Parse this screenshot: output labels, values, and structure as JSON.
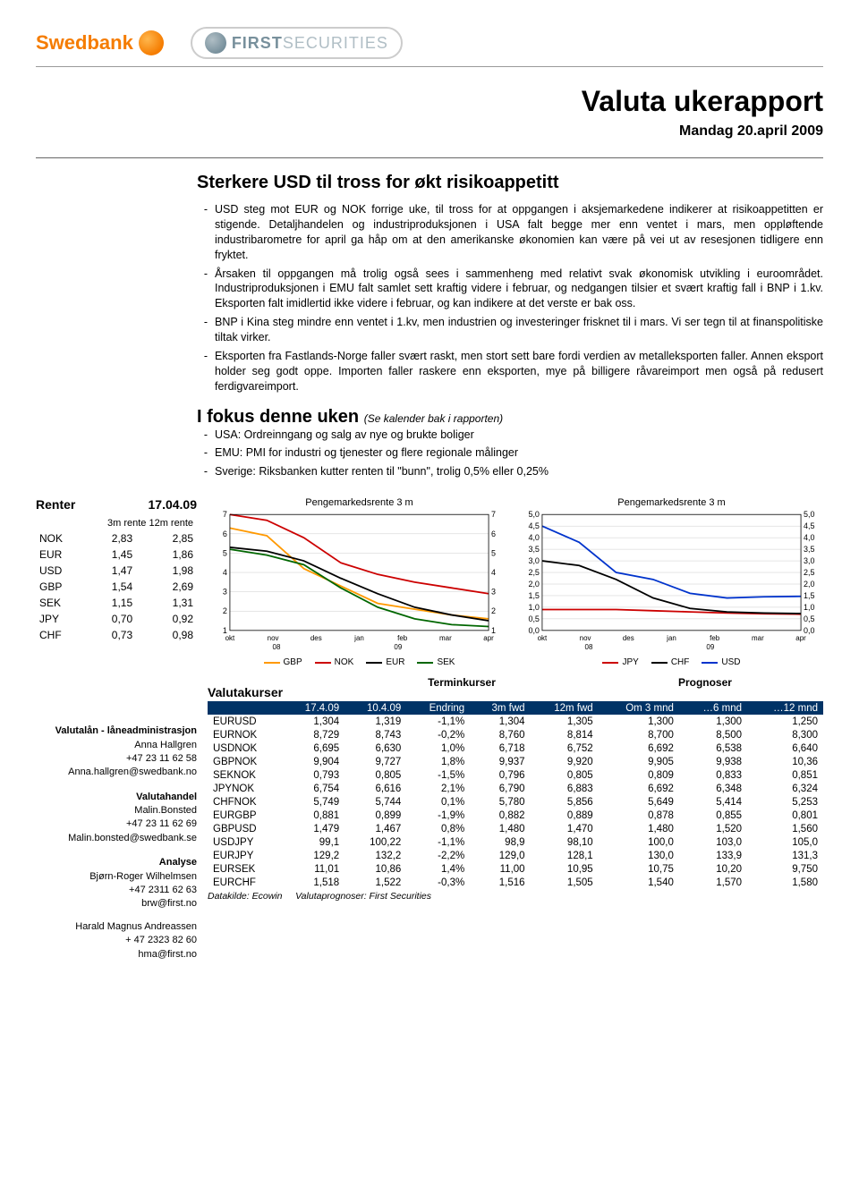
{
  "logos": {
    "swedbank": "Swedbank",
    "first": "FIRST",
    "first_light": "SECURITIES"
  },
  "title": {
    "main": "Valuta ukerapport",
    "date": "Mandag 20.april 2009"
  },
  "section1": {
    "title": "Sterkere USD til tross for økt risikoappetitt",
    "bullets": [
      "USD steg mot EUR og NOK forrige uke, til tross for at oppgangen i aksjemarkedene indikerer at risikoappetitten er stigende. Detaljhandelen og industriproduksjonen i USA falt begge mer enn ventet i mars, men oppløftende industribarometre for april ga håp om at den amerikanske økonomien kan være på vei ut av resesjonen tidligere enn fryktet.",
      "Årsaken til oppgangen må trolig også sees i sammenheng med relativt svak økonomisk utvikling i euroområdet. Industriproduksjonen i EMU falt samlet sett kraftig videre i februar, og nedgangen tilsier et svært kraftig fall i BNP i 1.kv. Eksporten falt imidlertid ikke videre i februar, og kan indikere at det verste er bak oss.",
      "BNP i Kina steg mindre enn ventet i 1.kv, men industrien og investeringer frisknet til i mars. Vi ser tegn til at finanspolitiske tiltak virker.",
      "Eksporten fra Fastlands-Norge faller svært raskt, men stort sett bare fordi verdien av metalleksporten faller. Annen eksport holder seg godt oppe. Importen faller raskere enn eksporten, mye på billigere råvareimport men også på redusert ferdigvareimport."
    ]
  },
  "section2": {
    "title": "I fokus denne uken",
    "sub": "(Se kalender bak i rapporten)",
    "bullets": [
      "USA: Ordreinngang og salg av nye og brukte boliger",
      "EMU: PMI for industri og tjenester og flere regionale målinger",
      "Sverige: Riksbanken kutter renten til \"bunn\", trolig 0,5% eller 0,25%"
    ]
  },
  "renter": {
    "title": "Renter",
    "date": "17.04.09",
    "sub": "3m rente  12m rente",
    "rows": [
      {
        "c": "NOK",
        "v3": "2,83",
        "v12": "2,85"
      },
      {
        "c": "EUR",
        "v3": "1,45",
        "v12": "1,86"
      },
      {
        "c": "USD",
        "v3": "1,47",
        "v12": "1,98"
      },
      {
        "c": "GBP",
        "v3": "1,54",
        "v12": "2,69"
      },
      {
        "c": "SEK",
        "v3": "1,15",
        "v12": "1,31"
      },
      {
        "c": "JPY",
        "v3": "0,70",
        "v12": "0,92"
      },
      {
        "c": "CHF",
        "v3": "0,73",
        "v12": "0,98"
      }
    ]
  },
  "contacts": {
    "g1_h": "Valutalån - låneadministrasjon",
    "g1_n": "Anna Hallgren",
    "g1_p": "+47 23 11 62 58",
    "g1_e": "Anna.hallgren@swedbank.no",
    "g2_h": "Valutahandel",
    "g2_n": "Malin.Bonsted",
    "g2_p": "+47 23 11 62 69",
    "g2_e": "Malin.bonsted@swedbank.se",
    "g3_h": "Analyse",
    "g3_n": "Bjørn-Roger Wilhelmsen",
    "g3_p": "+47 2311 62 63",
    "g3_e": "brw@first.no",
    "g4_n": "Harald Magnus Andreassen",
    "g4_p": "+ 47 2323 82 60",
    "g4_e": "hma@first.no"
  },
  "chart1": {
    "title": "Pengemarkedsrente 3 m",
    "ylim": [
      1,
      7
    ],
    "ytick_step": 1,
    "x_labels": [
      "okt",
      "nov",
      "des",
      "jan",
      "feb",
      "mar",
      "apr"
    ],
    "x_sub_labels": [
      "08",
      "09"
    ],
    "series": [
      {
        "name": "GBP",
        "color": "#ff9900",
        "data": [
          6.3,
          5.9,
          4.2,
          3.3,
          2.4,
          2.1,
          1.8,
          1.6
        ]
      },
      {
        "name": "NOK",
        "color": "#cc0000",
        "data": [
          7.0,
          6.7,
          5.8,
          4.5,
          3.9,
          3.5,
          3.2,
          2.9
        ]
      },
      {
        "name": "EUR",
        "color": "#000000",
        "data": [
          5.3,
          5.1,
          4.6,
          3.7,
          2.9,
          2.2,
          1.8,
          1.5
        ]
      },
      {
        "name": "SEK",
        "color": "#006600",
        "data": [
          5.2,
          4.9,
          4.4,
          3.2,
          2.2,
          1.6,
          1.3,
          1.2
        ]
      }
    ]
  },
  "chart2": {
    "title": "Pengemarkedsrente 3 m",
    "ylim": [
      0,
      5
    ],
    "ytick_step": 0.5,
    "x_labels": [
      "okt",
      "nov",
      "des",
      "jan",
      "feb",
      "mar",
      "apr"
    ],
    "x_sub_labels": [
      "08",
      "09"
    ],
    "series": [
      {
        "name": "JPY",
        "color": "#cc0000",
        "data": [
          0.9,
          0.9,
          0.9,
          0.85,
          0.8,
          0.75,
          0.72,
          0.7
        ]
      },
      {
        "name": "CHF",
        "color": "#000000",
        "data": [
          3.0,
          2.8,
          2.2,
          1.4,
          0.95,
          0.8,
          0.75,
          0.73
        ]
      },
      {
        "name": "USD",
        "color": "#0033cc",
        "data": [
          4.5,
          3.8,
          2.5,
          2.2,
          1.6,
          1.4,
          1.45,
          1.47
        ]
      }
    ]
  },
  "valutakurser": {
    "title": "Valutakurser",
    "group_headers": [
      "",
      "Terminkurser",
      "Prognoser"
    ],
    "headers": [
      "",
      "17.4.09",
      "10.4.09",
      "Endring",
      "3m fwd",
      "12m fwd",
      "Om 3 mnd",
      "…6 mnd",
      "…12 mnd"
    ],
    "rows": [
      [
        "EURUSD",
        "1,304",
        "1,319",
        "-1,1%",
        "1,304",
        "1,305",
        "1,300",
        "1,300",
        "1,250"
      ],
      [
        "EURNOK",
        "8,729",
        "8,743",
        "-0,2%",
        "8,760",
        "8,814",
        "8,700",
        "8,500",
        "8,300"
      ],
      [
        "USDNOK",
        "6,695",
        "6,630",
        "1,0%",
        "6,718",
        "6,752",
        "6,692",
        "6,538",
        "6,640"
      ],
      [
        "GBPNOK",
        "9,904",
        "9,727",
        "1,8%",
        "9,937",
        "9,920",
        "9,905",
        "9,938",
        "10,36"
      ],
      [
        "SEKNOK",
        "0,793",
        "0,805",
        "-1,5%",
        "0,796",
        "0,805",
        "0,809",
        "0,833",
        "0,851"
      ],
      [
        "JPYNOK",
        "6,754",
        "6,616",
        "2,1%",
        "6,790",
        "6,883",
        "6,692",
        "6,348",
        "6,324"
      ],
      [
        "CHFNOK",
        "5,749",
        "5,744",
        "0,1%",
        "5,780",
        "5,856",
        "5,649",
        "5,414",
        "5,253"
      ],
      [
        "EURGBP",
        "0,881",
        "0,899",
        "-1,9%",
        "0,882",
        "0,889",
        "0,878",
        "0,855",
        "0,801"
      ],
      [
        "GBPUSD",
        "1,479",
        "1,467",
        "0,8%",
        "1,480",
        "1,470",
        "1,480",
        "1,520",
        "1,560"
      ],
      [
        "USDJPY",
        "99,1",
        "100,22",
        "-1,1%",
        "98,9",
        "98,10",
        "100,0",
        "103,0",
        "105,0"
      ],
      [
        "EURJPY",
        "129,2",
        "132,2",
        "-2,2%",
        "129,0",
        "128,1",
        "130,0",
        "133,9",
        "131,3"
      ],
      [
        "EURSEK",
        "11,01",
        "10,86",
        "1,4%",
        "11,00",
        "10,95",
        "10,75",
        "10,20",
        "9,750"
      ],
      [
        "EURCHF",
        "1,518",
        "1,522",
        "-0,3%",
        "1,516",
        "1,505",
        "1,540",
        "1,570",
        "1,580"
      ]
    ],
    "footer_left": "Datakilde: Ecowin",
    "footer_right": "Valutaprognoser: First Securities"
  }
}
